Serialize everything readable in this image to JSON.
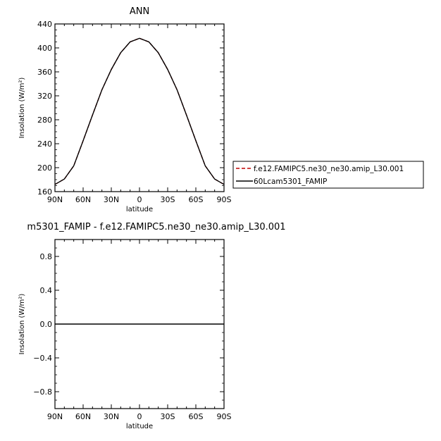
{
  "chart_data": [
    {
      "type": "line",
      "title": "ANN",
      "xlabel": "latitude",
      "ylabel": "Insolation (W/m²)",
      "xlim": [
        90,
        -90
      ],
      "ylim": [
        160,
        440
      ],
      "x_ticks": [
        90,
        60,
        30,
        0,
        -30,
        -60,
        -90
      ],
      "x_tick_labels": [
        "90N",
        "60N",
        "30N",
        "0",
        "30S",
        "60S",
        "90S"
      ],
      "y_ticks": [
        160,
        200,
        240,
        280,
        320,
        360,
        400,
        440
      ],
      "y_tick_labels": [
        "160",
        "200",
        "240",
        "280",
        "320",
        "360",
        "400",
        "440"
      ],
      "legend": "right",
      "x": [
        90,
        80,
        70,
        60,
        50,
        40,
        30,
        20,
        10,
        0,
        -10,
        -20,
        -30,
        -40,
        -50,
        -60,
        -70,
        -80,
        -90
      ],
      "series": [
        {
          "name": "f.e12.FAMIPC5.ne30_ne30.amip_L30.001",
          "color": "#c00000",
          "style": "dashed",
          "values": [
            172,
            181,
            203,
            245,
            288,
            330,
            364,
            392,
            410,
            416,
            410,
            392,
            364,
            330,
            288,
            245,
            203,
            181,
            172
          ]
        },
        {
          "name": "60Lcam5301_FAMIP",
          "color": "#000000",
          "style": "solid",
          "values": [
            172,
            181,
            203,
            245,
            288,
            330,
            364,
            392,
            410,
            416,
            410,
            392,
            364,
            330,
            288,
            245,
            203,
            181,
            172
          ]
        }
      ]
    },
    {
      "type": "line",
      "title": "m5301_FAMIP - f.e12.FAMIPC5.ne30_ne30.amip_L30.001",
      "xlabel": "latitude",
      "ylabel": "Insolation (W/m²)",
      "xlim": [
        90,
        -90
      ],
      "ylim": [
        -1,
        1
      ],
      "x_ticks": [
        90,
        60,
        30,
        0,
        -30,
        -60,
        -90
      ],
      "x_tick_labels": [
        "90N",
        "60N",
        "30N",
        "0",
        "30S",
        "60S",
        "90S"
      ],
      "y_ticks": [
        -0.8,
        -0.4,
        0.0,
        0.4,
        0.8
      ],
      "y_tick_labels": [
        "−0.8",
        "−0.4",
        "0.0",
        "0.4",
        "0.8"
      ],
      "x": [
        90,
        80,
        70,
        60,
        50,
        40,
        30,
        20,
        10,
        0,
        -10,
        -20,
        -30,
        -40,
        -50,
        -60,
        -70,
        -80,
        -90
      ],
      "series": [
        {
          "color": "#000000",
          "style": "solid",
          "values": [
            0,
            0,
            0,
            0,
            0,
            0,
            0,
            0,
            0,
            0,
            0,
            0,
            0,
            0,
            0,
            0,
            0,
            0,
            0
          ]
        }
      ]
    }
  ]
}
